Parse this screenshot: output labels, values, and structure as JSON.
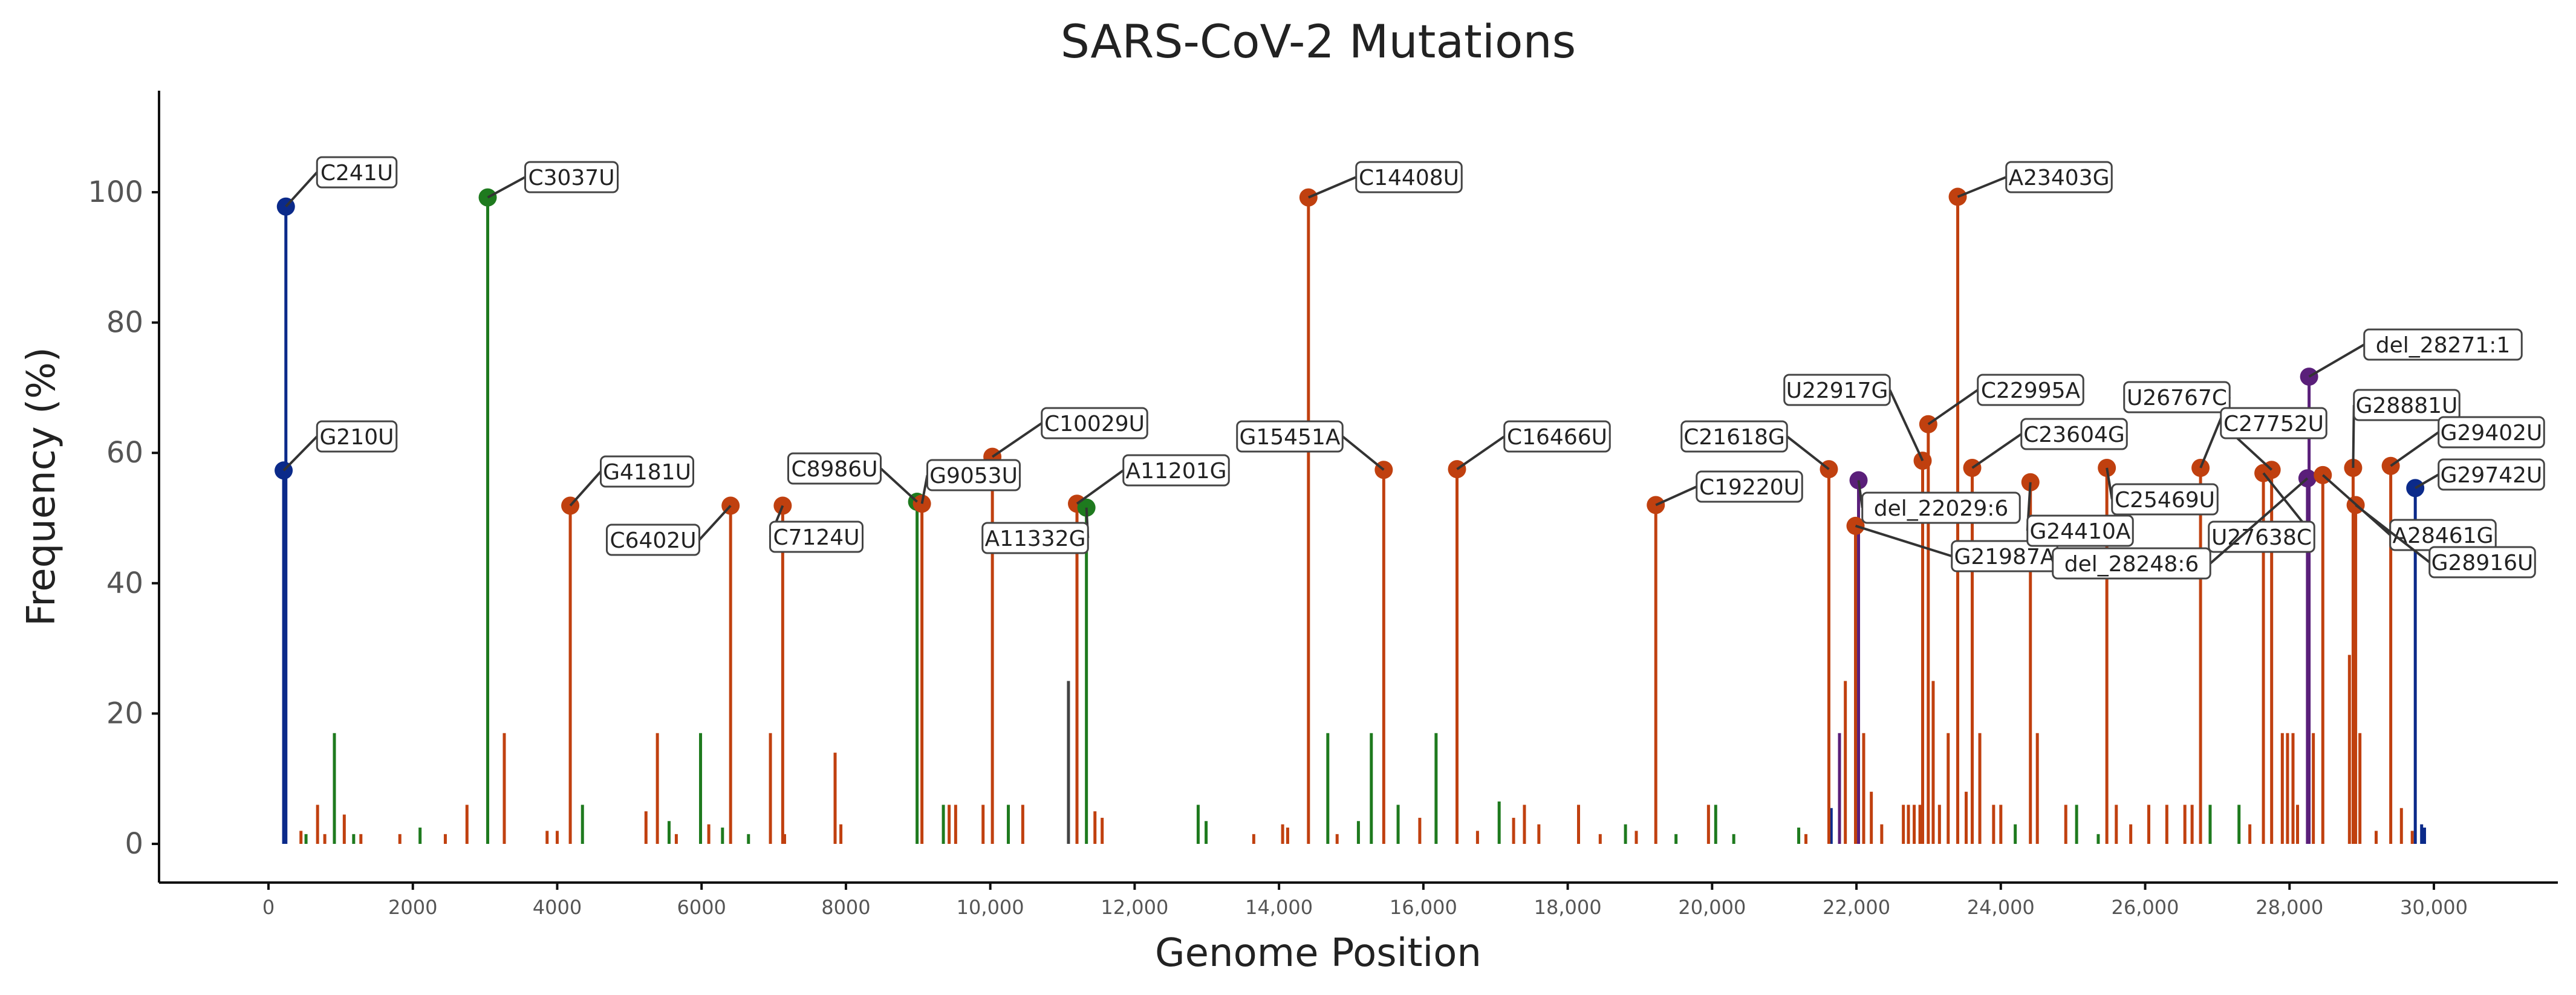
{
  "chart_data": {
    "type": "lollipop",
    "title": "SARS-CoV-2 Mutations",
    "xlabel": "Genome Position",
    "ylabel": "Frequency (%)",
    "xlim": [
      -1500,
      31500
    ],
    "ylim": [
      -5,
      115
    ],
    "xticks": [
      0,
      2000,
      4000,
      6000,
      8000,
      10000,
      12000,
      14000,
      16000,
      18000,
      20000,
      22000,
      24000,
      26000,
      28000,
      30000
    ],
    "xtick_labels": [
      "0",
      "2000",
      "4000",
      "6000",
      "8000",
      "10,000",
      "12,000",
      "14,000",
      "16,000",
      "18,000",
      "20,000",
      "22,000",
      "24,000",
      "26,000",
      "28,000",
      "30,000"
    ],
    "yticks": [
      0,
      20,
      40,
      60,
      80,
      100
    ],
    "ytick_labels": [
      "0",
      "20",
      "40",
      "60",
      "80",
      "100"
    ],
    "grid": false,
    "colors": {
      "blue": "#0b2a8a",
      "green": "#1e7a1e",
      "orange": "#c0400f",
      "purple": "#5a1f7a",
      "gray": "#444444"
    },
    "labeled_mutations": [
      {
        "label": "C241U",
        "pos": 241,
        "freq": 97.8,
        "color": "blue"
      },
      {
        "label": "G210U",
        "pos": 210,
        "freq": 57.3,
        "color": "blue"
      },
      {
        "label": "C3037U",
        "pos": 3037,
        "freq": 99.2,
        "color": "green"
      },
      {
        "label": "G4181U",
        "pos": 4181,
        "freq": 51.9,
        "color": "orange"
      },
      {
        "label": "C6402U",
        "pos": 6402,
        "freq": 51.9,
        "color": "orange"
      },
      {
        "label": "C7124U",
        "pos": 7124,
        "freq": 51.9,
        "color": "orange"
      },
      {
        "label": "C8986U",
        "pos": 8986,
        "freq": 52.5,
        "color": "green"
      },
      {
        "label": "G9053U",
        "pos": 9053,
        "freq": 52.2,
        "color": "orange"
      },
      {
        "label": "C10029U",
        "pos": 10029,
        "freq": 59.4,
        "color": "orange"
      },
      {
        "label": "A11201G",
        "pos": 11201,
        "freq": 52.2,
        "color": "orange"
      },
      {
        "label": "A11332G",
        "pos": 11332,
        "freq": 51.6,
        "color": "green"
      },
      {
        "label": "C14408U",
        "pos": 14408,
        "freq": 99.2,
        "color": "orange"
      },
      {
        "label": "G15451A",
        "pos": 15451,
        "freq": 57.4,
        "color": "orange"
      },
      {
        "label": "C16466U",
        "pos": 16466,
        "freq": 57.5,
        "color": "orange"
      },
      {
        "label": "C19220U",
        "pos": 19220,
        "freq": 52.0,
        "color": "orange"
      },
      {
        "label": "C21618G",
        "pos": 21618,
        "freq": 57.5,
        "color": "orange"
      },
      {
        "label": "del_22029:6",
        "pos": 22029,
        "freq": 55.8,
        "color": "purple"
      },
      {
        "label": "G21987A",
        "pos": 21987,
        "freq": 48.8,
        "color": "orange"
      },
      {
        "label": "U22917G",
        "pos": 22917,
        "freq": 58.8,
        "color": "orange"
      },
      {
        "label": "C22995A",
        "pos": 22995,
        "freq": 64.4,
        "color": "orange"
      },
      {
        "label": "A23403G",
        "pos": 23403,
        "freq": 99.3,
        "color": "orange"
      },
      {
        "label": "C23604G",
        "pos": 23604,
        "freq": 57.7,
        "color": "orange"
      },
      {
        "label": "G24410A",
        "pos": 24410,
        "freq": 55.5,
        "color": "orange"
      },
      {
        "label": "C25469U",
        "pos": 25469,
        "freq": 57.7,
        "color": "orange"
      },
      {
        "label": "U26767C",
        "pos": 26767,
        "freq": 57.7,
        "color": "orange"
      },
      {
        "label": "C27752U",
        "pos": 27752,
        "freq": 57.4,
        "color": "orange"
      },
      {
        "label": "U27638C",
        "pos": 27638,
        "freq": 56.9,
        "color": "orange"
      },
      {
        "label": "del_28248:6",
        "pos": 28248,
        "freq": 56.1,
        "color": "purple"
      },
      {
        "label": "del_28271:1",
        "pos": 28271,
        "freq": 71.7,
        "color": "purple"
      },
      {
        "label": "G28881U",
        "pos": 28881,
        "freq": 57.7,
        "color": "orange"
      },
      {
        "label": "A28461G",
        "pos": 28461,
        "freq": 56.6,
        "color": "orange"
      },
      {
        "label": "G28916U",
        "pos": 28916,
        "freq": 52.0,
        "color": "orange"
      },
      {
        "label": "G29402U",
        "pos": 29402,
        "freq": 58.0,
        "color": "orange"
      },
      {
        "label": "G29742U",
        "pos": 29742,
        "freq": 54.6,
        "color": "blue"
      }
    ],
    "minor_mutations": [
      {
        "pos": 450,
        "freq": 2,
        "color": "orange"
      },
      {
        "pos": 520,
        "freq": 1.5,
        "color": "green"
      },
      {
        "pos": 680,
        "freq": 6,
        "color": "orange"
      },
      {
        "pos": 780,
        "freq": 1.5,
        "color": "orange"
      },
      {
        "pos": 913,
        "freq": 17,
        "color": "green"
      },
      {
        "pos": 1050,
        "freq": 4.5,
        "color": "orange"
      },
      {
        "pos": 1180,
        "freq": 1.5,
        "color": "green"
      },
      {
        "pos": 1280,
        "freq": 1.5,
        "color": "orange"
      },
      {
        "pos": 1820,
        "freq": 1.5,
        "color": "orange"
      },
      {
        "pos": 2100,
        "freq": 2.5,
        "color": "green"
      },
      {
        "pos": 2450,
        "freq": 1.5,
        "color": "orange"
      },
      {
        "pos": 2750,
        "freq": 6,
        "color": "orange"
      },
      {
        "pos": 3267,
        "freq": 17,
        "color": "orange"
      },
      {
        "pos": 3860,
        "freq": 2,
        "color": "orange"
      },
      {
        "pos": 4000,
        "freq": 2,
        "color": "orange"
      },
      {
        "pos": 4350,
        "freq": 6,
        "color": "green"
      },
      {
        "pos": 5230,
        "freq": 5,
        "color": "orange"
      },
      {
        "pos": 5388,
        "freq": 17,
        "color": "orange"
      },
      {
        "pos": 5550,
        "freq": 3.5,
        "color": "green"
      },
      {
        "pos": 5650,
        "freq": 1.5,
        "color": "orange"
      },
      {
        "pos": 5986,
        "freq": 17,
        "color": "green"
      },
      {
        "pos": 6100,
        "freq": 3,
        "color": "orange"
      },
      {
        "pos": 6290,
        "freq": 2.5,
        "color": "green"
      },
      {
        "pos": 6650,
        "freq": 1.5,
        "color": "green"
      },
      {
        "pos": 6954,
        "freq": 17,
        "color": "orange"
      },
      {
        "pos": 7150,
        "freq": 1.5,
        "color": "orange"
      },
      {
        "pos": 7850,
        "freq": 14,
        "color": "orange"
      },
      {
        "pos": 7930,
        "freq": 3,
        "color": "orange"
      },
      {
        "pos": 9350,
        "freq": 6,
        "color": "green"
      },
      {
        "pos": 9430,
        "freq": 6,
        "color": "orange"
      },
      {
        "pos": 9520,
        "freq": 6,
        "color": "orange"
      },
      {
        "pos": 9900,
        "freq": 6,
        "color": "orange"
      },
      {
        "pos": 10250,
        "freq": 6,
        "color": "green"
      },
      {
        "pos": 10450,
        "freq": 6,
        "color": "orange"
      },
      {
        "pos": 11083,
        "freq": 25,
        "color": "gray"
      },
      {
        "pos": 11450,
        "freq": 5,
        "color": "orange"
      },
      {
        "pos": 11550,
        "freq": 4,
        "color": "orange"
      },
      {
        "pos": 12880,
        "freq": 6,
        "color": "green"
      },
      {
        "pos": 12990,
        "freq": 3.5,
        "color": "green"
      },
      {
        "pos": 13650,
        "freq": 1.5,
        "color": "orange"
      },
      {
        "pos": 14050,
        "freq": 3,
        "color": "orange"
      },
      {
        "pos": 14120,
        "freq": 2.5,
        "color": "orange"
      },
      {
        "pos": 14676,
        "freq": 17,
        "color": "green"
      },
      {
        "pos": 14805,
        "freq": 1.5,
        "color": "orange"
      },
      {
        "pos": 15100,
        "freq": 3.5,
        "color": "green"
      },
      {
        "pos": 15279,
        "freq": 17,
        "color": "green"
      },
      {
        "pos": 15650,
        "freq": 6,
        "color": "green"
      },
      {
        "pos": 15950,
        "freq": 4,
        "color": "orange"
      },
      {
        "pos": 16176,
        "freq": 17,
        "color": "green"
      },
      {
        "pos": 16750,
        "freq": 2,
        "color": "orange"
      },
      {
        "pos": 17050,
        "freq": 6.5,
        "color": "green"
      },
      {
        "pos": 17250,
        "freq": 4,
        "color": "orange"
      },
      {
        "pos": 17400,
        "freq": 6,
        "color": "orange"
      },
      {
        "pos": 17600,
        "freq": 3,
        "color": "orange"
      },
      {
        "pos": 18150,
        "freq": 6,
        "color": "orange"
      },
      {
        "pos": 18450,
        "freq": 1.5,
        "color": "orange"
      },
      {
        "pos": 18800,
        "freq": 3,
        "color": "green"
      },
      {
        "pos": 18950,
        "freq": 2,
        "color": "orange"
      },
      {
        "pos": 19500,
        "freq": 1.5,
        "color": "green"
      },
      {
        "pos": 19950,
        "freq": 6,
        "color": "orange"
      },
      {
        "pos": 20050,
        "freq": 6,
        "color": "green"
      },
      {
        "pos": 20300,
        "freq": 1.5,
        "color": "green"
      },
      {
        "pos": 21200,
        "freq": 2.5,
        "color": "green"
      },
      {
        "pos": 21300,
        "freq": 1.5,
        "color": "orange"
      },
      {
        "pos": 21650,
        "freq": 5.5,
        "color": "blue"
      },
      {
        "pos": 21765,
        "freq": 17,
        "color": "purple"
      },
      {
        "pos": 21846,
        "freq": 25,
        "color": "orange"
      },
      {
        "pos": 22100,
        "freq": 17,
        "color": "orange"
      },
      {
        "pos": 22206,
        "freq": 8,
        "color": "orange"
      },
      {
        "pos": 22350,
        "freq": 3,
        "color": "orange"
      },
      {
        "pos": 22650,
        "freq": 6,
        "color": "orange"
      },
      {
        "pos": 22720,
        "freq": 6,
        "color": "orange"
      },
      {
        "pos": 22800,
        "freq": 6,
        "color": "orange"
      },
      {
        "pos": 22880,
        "freq": 6,
        "color": "orange"
      },
      {
        "pos": 23063,
        "freq": 25,
        "color": "orange"
      },
      {
        "pos": 23150,
        "freq": 6,
        "color": "orange"
      },
      {
        "pos": 23271,
        "freq": 17,
        "color": "orange"
      },
      {
        "pos": 23520,
        "freq": 8,
        "color": "orange"
      },
      {
        "pos": 23709,
        "freq": 17,
        "color": "orange"
      },
      {
        "pos": 23900,
        "freq": 6,
        "color": "orange"
      },
      {
        "pos": 24000,
        "freq": 6,
        "color": "orange"
      },
      {
        "pos": 24200,
        "freq": 3,
        "color": "green"
      },
      {
        "pos": 24506,
        "freq": 17,
        "color": "orange"
      },
      {
        "pos": 24900,
        "freq": 6,
        "color": "orange"
      },
      {
        "pos": 25050,
        "freq": 6,
        "color": "green"
      },
      {
        "pos": 25350,
        "freq": 1.5,
        "color": "green"
      },
      {
        "pos": 25600,
        "freq": 6,
        "color": "orange"
      },
      {
        "pos": 25800,
        "freq": 3,
        "color": "orange"
      },
      {
        "pos": 26050,
        "freq": 6,
        "color": "orange"
      },
      {
        "pos": 26300,
        "freq": 6,
        "color": "orange"
      },
      {
        "pos": 26550,
        "freq": 6,
        "color": "orange"
      },
      {
        "pos": 26650,
        "freq": 6,
        "color": "orange"
      },
      {
        "pos": 26900,
        "freq": 6,
        "color": "green"
      },
      {
        "pos": 27300,
        "freq": 6,
        "color": "green"
      },
      {
        "pos": 27450,
        "freq": 3,
        "color": "orange"
      },
      {
        "pos": 27900,
        "freq": 17,
        "color": "orange"
      },
      {
        "pos": 27972,
        "freq": 17,
        "color": "orange"
      },
      {
        "pos": 28048,
        "freq": 17,
        "color": "orange"
      },
      {
        "pos": 28111,
        "freq": 6,
        "color": "orange"
      },
      {
        "pos": 28330,
        "freq": 17,
        "color": "orange"
      },
      {
        "pos": 28830,
        "freq": 29,
        "color": "orange"
      },
      {
        "pos": 28975,
        "freq": 17,
        "color": "orange"
      },
      {
        "pos": 29200,
        "freq": 2,
        "color": "orange"
      },
      {
        "pos": 29550,
        "freq": 5.5,
        "color": "orange"
      },
      {
        "pos": 29700,
        "freq": 2,
        "color": "orange"
      },
      {
        "pos": 29830,
        "freq": 3,
        "color": "blue"
      },
      {
        "pos": 29870,
        "freq": 2.5,
        "color": "blue"
      }
    ]
  }
}
